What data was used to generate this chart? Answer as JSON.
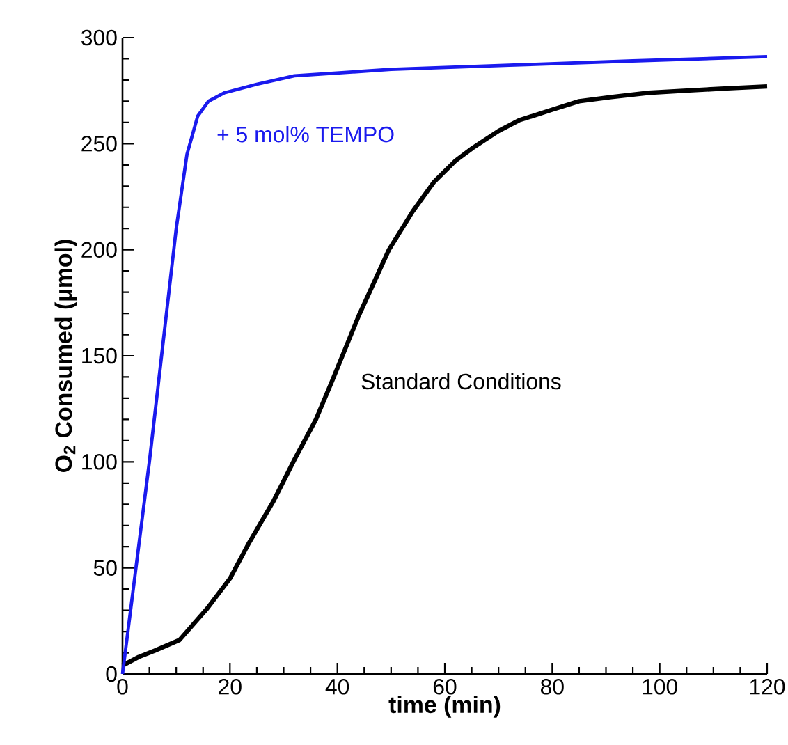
{
  "chart_data": {
    "type": "line",
    "xlabel": "time (min)",
    "ylabel": "O$_{2}$ Consumed (µmol)",
    "xlim": [
      0,
      120
    ],
    "ylim": [
      0,
      300
    ],
    "xticks": [
      0,
      20,
      40,
      60,
      80,
      100,
      120
    ],
    "yticks": [
      0,
      50,
      100,
      150,
      200,
      250,
      300
    ],
    "series": [
      {
        "name": "Standard Conditions",
        "color": "#000000",
        "x": [
          0,
          3,
          6,
          10.6,
          15.8,
          20,
          23.6,
          28,
          32,
          36,
          39,
          44,
          49.6,
          54,
          58,
          62,
          65.2,
          70,
          73.8,
          80,
          85,
          91,
          98,
          105,
          112,
          120
        ],
        "values": [
          4,
          8,
          11,
          16,
          31,
          45,
          62,
          81,
          101,
          120,
          138,
          169,
          200,
          218,
          232,
          242,
          248,
          256,
          261,
          266,
          270,
          272,
          274,
          275,
          276,
          277
        ]
      },
      {
        "name": "+ 5 mol% TEMPO",
        "color": "#1a1aee",
        "x": [
          0,
          5,
          10,
          12,
          14,
          16,
          19,
          25,
          32,
          50,
          72,
          95,
          120
        ],
        "values": [
          0,
          100,
          210,
          245,
          263,
          270,
          274,
          278,
          282,
          285,
          287,
          289,
          291
        ]
      }
    ]
  }
}
